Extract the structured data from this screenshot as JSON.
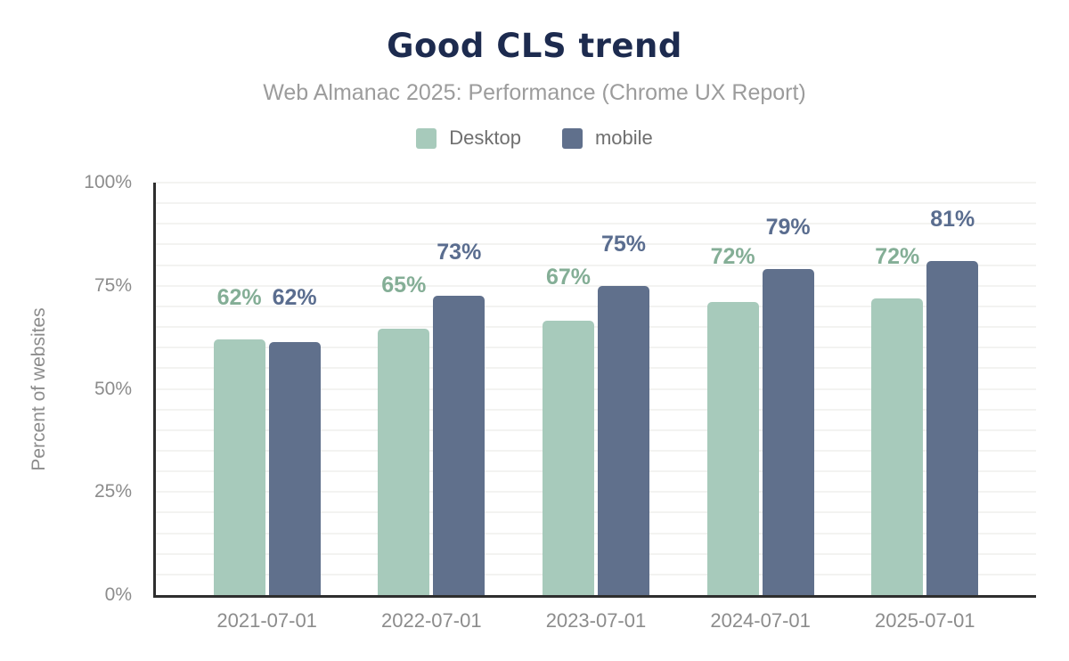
{
  "colors": {
    "title": "#1d2b4f",
    "subtitle": "#9c9c9c",
    "legend_text": "#6f6f6f",
    "tick_label": "#8c8c8c",
    "axis_line": "#2e2e2e",
    "gridline": "#f3f3f1",
    "background": "#ffffff",
    "desktop_bar": "#a7cabb",
    "mobile_bar": "#60708c"
  },
  "chart_data": {
    "type": "bar",
    "title": "Good CLS trend",
    "subtitle": "Web Almanac 2025: Performance (Chrome UX Report)",
    "ylabel": "Percent of websites",
    "xlabel": "",
    "ylim": [
      0,
      100
    ],
    "yticks": [
      {
        "value": 0,
        "label": "0%"
      },
      {
        "value": 25,
        "label": "25%"
      },
      {
        "value": 50,
        "label": "50%"
      },
      {
        "value": 75,
        "label": "75%"
      },
      {
        "value": 100,
        "label": "100%"
      }
    ],
    "grid": {
      "step_pct": 5,
      "orientation": "horizontal"
    },
    "legend_position": "top-center",
    "categories": [
      "2021-07-01",
      "2022-07-01",
      "2023-07-01",
      "2024-07-01",
      "2025-07-01"
    ],
    "series": [
      {
        "name": "Desktop",
        "color": "#a7cabb",
        "label_color": "#84ae96",
        "values": [
          62,
          65,
          67,
          72,
          72
        ],
        "labels": [
          "62%",
          "65%",
          "67%",
          "72%",
          "72%"
        ],
        "bar_heights_pct": [
          62,
          64.5,
          66.5,
          71,
          72
        ]
      },
      {
        "name": "mobile",
        "color": "#60708c",
        "label_color": "#5a6d8f",
        "values": [
          62,
          73,
          75,
          79,
          81
        ],
        "labels": [
          "62%",
          "73%",
          "75%",
          "79%",
          "81%"
        ],
        "bar_heights_pct": [
          61.3,
          72.5,
          75,
          79,
          81
        ]
      }
    ]
  }
}
